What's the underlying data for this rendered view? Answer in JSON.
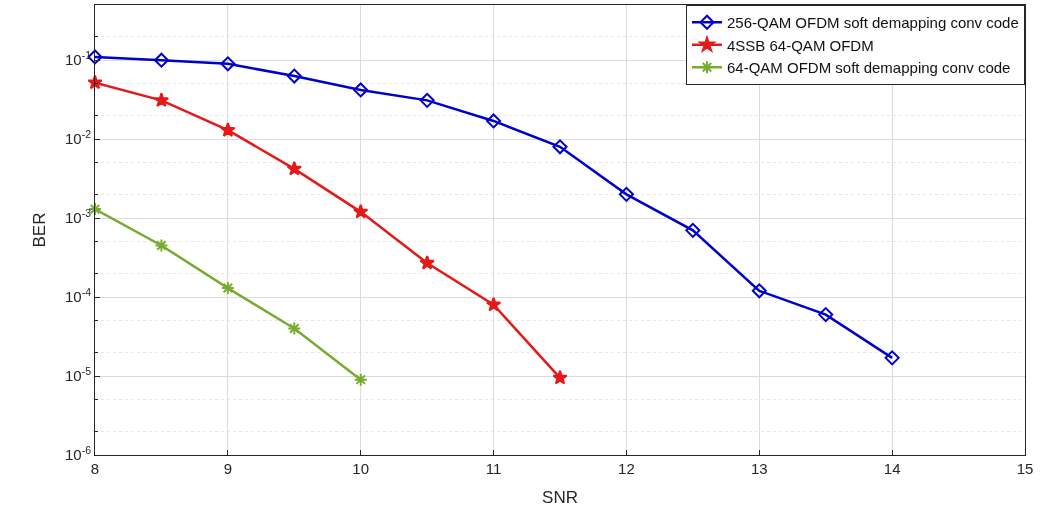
{
  "chart_data": {
    "type": "line",
    "xlabel": "SNR",
    "ylabel": "BER",
    "log": "y",
    "grid": true,
    "legend": "top right",
    "xlim": [
      8,
      15
    ],
    "xticks": [
      8,
      9,
      10,
      11,
      12,
      13,
      14,
      15
    ],
    "ylim": [
      1e-06,
      0.5
    ],
    "yticks": [
      {
        "value": 1e-06,
        "label": "10$^{-6}$"
      },
      {
        "value": 1e-05,
        "label": "10$^{-5}$"
      },
      {
        "value": 0.0001,
        "label": "10$^{-4}$"
      },
      {
        "value": 0.001,
        "label": "10$^{-3}$"
      },
      {
        "value": 0.01,
        "label": "10$^{-2}$"
      },
      {
        "value": 0.1,
        "label": "10$^{-1}$"
      }
    ],
    "series": [
      {
        "name": "256-QAM OFDM soft demapping conv code",
        "color": "#0000cc",
        "marker": "diamond",
        "x": [
          8,
          8.5,
          9,
          9.5,
          10,
          10.5,
          11,
          11.5,
          12,
          12.5,
          13,
          13.5,
          14
        ],
        "values": [
          0.11,
          0.1,
          0.09,
          0.063,
          0.042,
          0.031,
          0.017,
          0.008,
          0.002,
          0.0007,
          0.00012,
          6e-05,
          1.7e-05
        ]
      },
      {
        "name": "4SSB 64-QAM OFDM",
        "color": "#e61919",
        "marker": "star",
        "x": [
          8,
          8.5,
          9,
          9.5,
          10,
          10.5,
          11,
          11.5
        ],
        "values": [
          0.052,
          0.031,
          0.013,
          0.0042,
          0.0012,
          0.00027,
          8e-05,
          9.5e-06
        ]
      },
      {
        "name": "64-QAM OFDM soft demapping conv code",
        "color": "#77ac30",
        "marker": "cross",
        "x": [
          8,
          8.5,
          9,
          9.5,
          10
        ],
        "values": [
          0.0013,
          0.00045,
          0.00013,
          4e-05,
          9e-06
        ]
      }
    ]
  }
}
